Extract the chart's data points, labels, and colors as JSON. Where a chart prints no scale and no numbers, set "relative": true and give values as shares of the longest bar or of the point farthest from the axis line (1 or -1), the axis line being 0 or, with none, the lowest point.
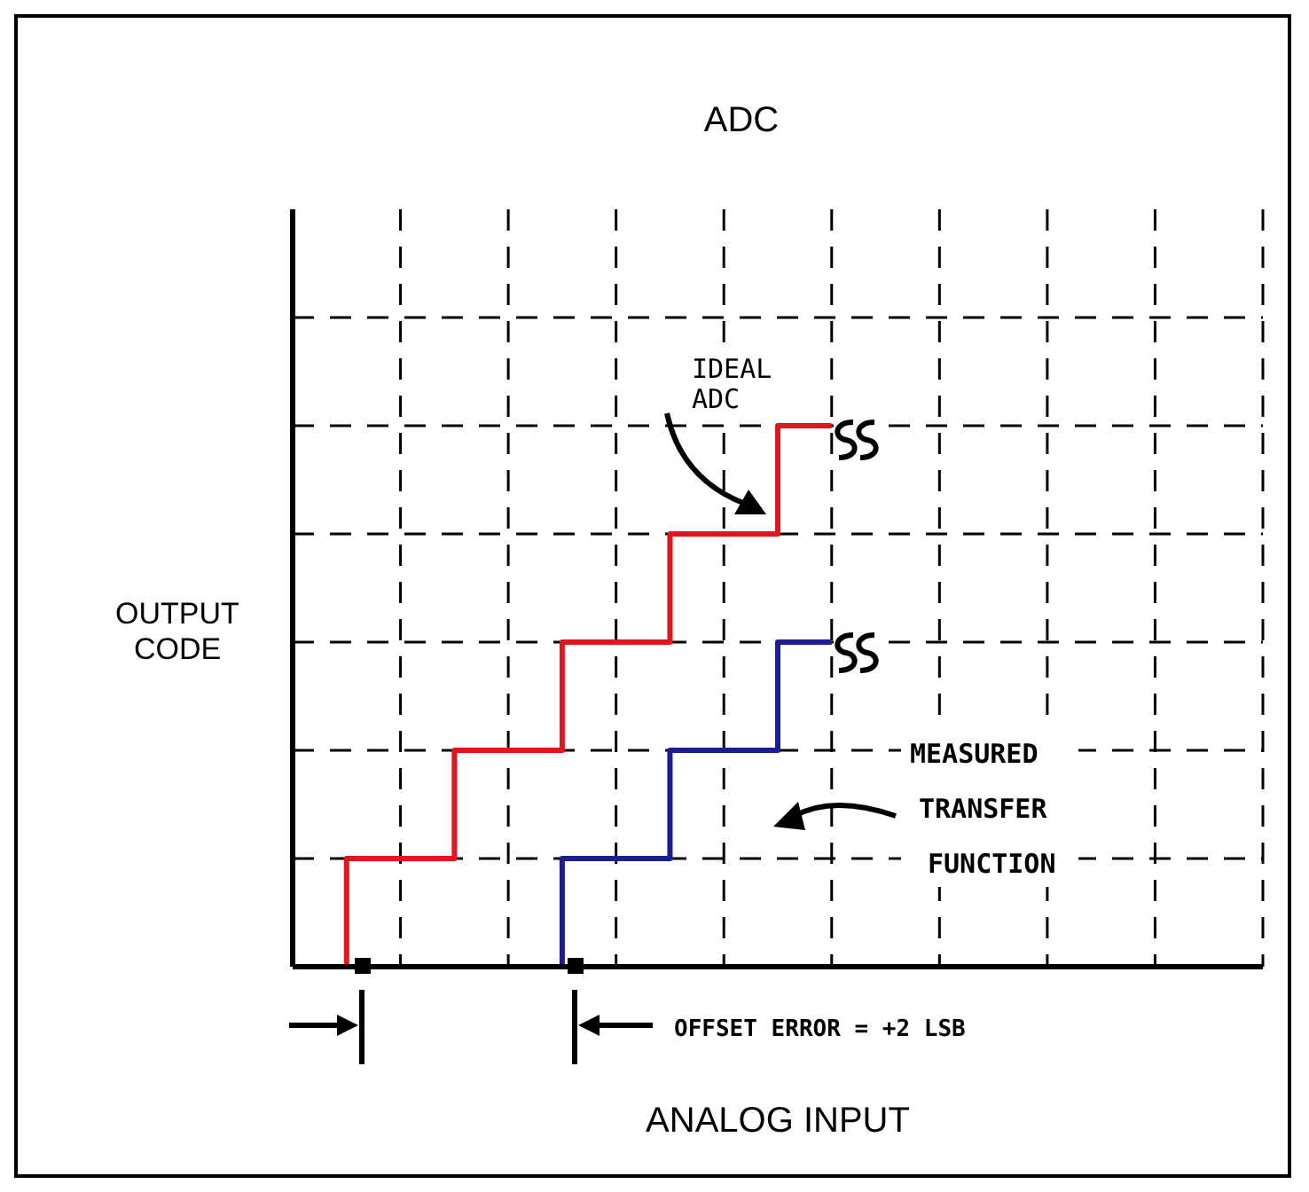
{
  "chart_data": {
    "type": "step",
    "title": "ADC",
    "xlabel": "ANALOG INPUT",
    "ylabel": "OUTPUT CODE",
    "relative": true,
    "grid": true,
    "line_style": "solid",
    "categories": [
      null,
      null,
      null,
      null,
      null,
      null,
      null,
      null,
      null,
      null,
      null,
      null,
      null,
      null,
      null,
      null,
      null,
      null,
      null
    ],
    "series": [
      {
        "color": "#e3161e",
        "values": [
          0,
          0.2,
          0.2,
          0.4,
          0.4,
          0.6,
          0.6,
          0.8,
          0.8,
          1,
          1,
          null,
          null,
          null,
          null,
          null,
          null,
          null,
          null
        ]
      },
      {
        "color": "#1c1c96",
        "values": [
          null,
          null,
          null,
          null,
          0,
          0.2,
          0.2,
          0.4,
          0.4,
          0.6,
          0.6,
          null,
          null,
          null,
          null,
          null,
          null,
          null,
          null
        ]
      }
    ],
    "annotations": [
      "IDEAL ADC",
      "MEASURED TRANSFER FUNCTION",
      "OFFSET ERROR = +2 LSB"
    ]
  }
}
